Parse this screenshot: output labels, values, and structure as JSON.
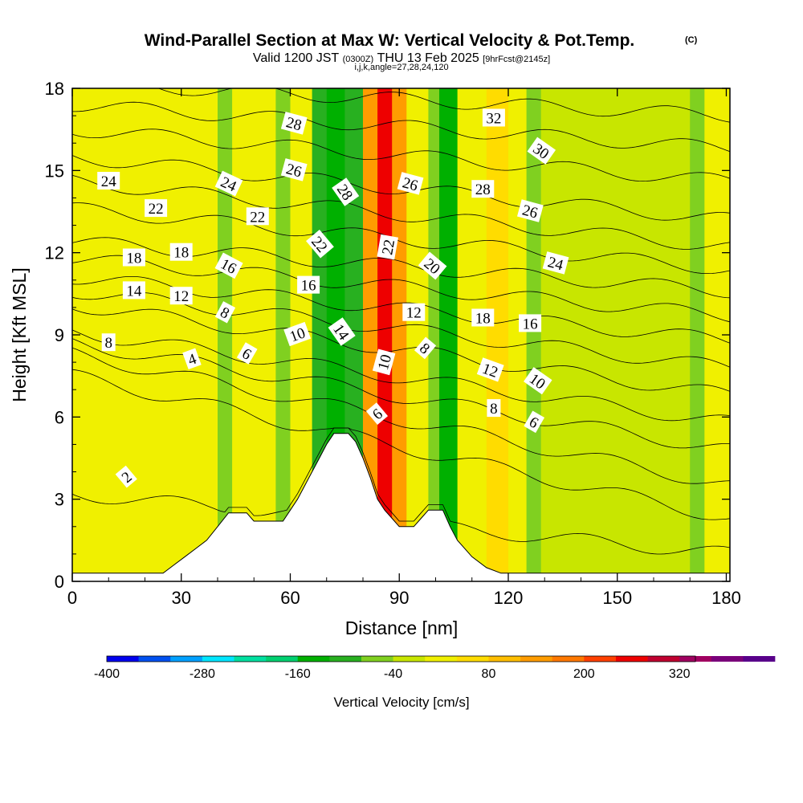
{
  "chart_data": {
    "type": "heatmap",
    "title": "Wind-Parallel Section at Max W: Vertical Velocity & Pot.Temp.",
    "title_mark": "(C)",
    "subtitle_main": "Valid 1200 JST",
    "subtitle_utc": "(0300Z)",
    "subtitle_date": "THU 13 Feb 2025",
    "subtitle_fcst": "[9hrFcst@2145z]",
    "subtitle_ijk": "i,j,k,angle=27,28,24,120",
    "xlabel": "Distance [nm]",
    "ylabel": "Height [Kft MSL]",
    "xlim": [
      0,
      181
    ],
    "ylim": [
      0,
      18
    ],
    "x_ticks": [
      0,
      30,
      60,
      90,
      120,
      150,
      180
    ],
    "x_tick_labels": [
      "0",
      "30",
      "60",
      "90",
      "120",
      "150",
      "180"
    ],
    "y_ticks": [
      0,
      3,
      6,
      9,
      12,
      15,
      18
    ],
    "y_tick_labels": [
      "0",
      "3",
      "6",
      "9",
      "12",
      "15",
      "18"
    ],
    "colorbar": {
      "title": "Vertical Velocity [cm/s]",
      "min": -400,
      "max": 340,
      "step": 40,
      "tick_labels": [
        "-400",
        "-280",
        "-160",
        "-40",
        "80",
        "200",
        "320"
      ],
      "tick_values": [
        -400,
        -280,
        -160,
        -40,
        80,
        200,
        320
      ],
      "colors": [
        "#0000ee",
        "#0050f0",
        "#00a0ff",
        "#00e6ff",
        "#00e0a0",
        "#00d070",
        "#00b000",
        "#28b020",
        "#80d020",
        "#c8e600",
        "#f0f000",
        "#ffdc00",
        "#ffbe00",
        "#ff9c00",
        "#ff7800",
        "#ff4000",
        "#ee0000",
        "#c00030",
        "#a00060",
        "#7a007a",
        "#58008a"
      ]
    },
    "vertical_velocity_columns": [
      {
        "x": [
          0,
          36
        ],
        "w": 10
      },
      {
        "x": [
          36,
          40
        ],
        "w": 0
      },
      {
        "x": [
          40,
          44
        ],
        "w": -60
      },
      {
        "x": [
          44,
          56
        ],
        "w": 10
      },
      {
        "x": [
          56,
          60
        ],
        "w": -50
      },
      {
        "x": [
          60,
          66
        ],
        "w": 30
      },
      {
        "x": [
          66,
          70
        ],
        "w": -90
      },
      {
        "x": [
          70,
          75
        ],
        "w": -150
      },
      {
        "x": [
          75,
          80
        ],
        "w": -100
      },
      {
        "x": [
          80,
          84
        ],
        "w": 130
      },
      {
        "x": [
          84,
          88
        ],
        "w": 240
      },
      {
        "x": [
          88,
          92
        ],
        "w": 120
      },
      {
        "x": [
          92,
          98
        ],
        "w": 10
      },
      {
        "x": [
          98,
          101
        ],
        "w": -60
      },
      {
        "x": [
          101,
          106
        ],
        "w": -150
      },
      {
        "x": [
          106,
          114
        ],
        "w": 10
      },
      {
        "x": [
          114,
          120
        ],
        "w": 50
      },
      {
        "x": [
          120,
          125
        ],
        "w": 20
      },
      {
        "x": [
          125,
          129
        ],
        "w": -60
      },
      {
        "x": [
          129,
          170
        ],
        "w": -20
      },
      {
        "x": [
          170,
          174
        ],
        "w": -80
      },
      {
        "x": [
          174,
          181
        ],
        "w": 20
      }
    ],
    "terrain": [
      [
        0,
        0.3
      ],
      [
        25,
        0.3
      ],
      [
        28,
        0.6
      ],
      [
        31,
        0.9
      ],
      [
        34,
        1.2
      ],
      [
        37,
        1.5
      ],
      [
        40,
        2.0
      ],
      [
        43,
        2.5
      ],
      [
        48,
        2.5
      ],
      [
        50,
        2.2
      ],
      [
        58,
        2.2
      ],
      [
        60,
        2.6
      ],
      [
        62,
        3.0
      ],
      [
        64,
        3.5
      ],
      [
        66,
        4.0
      ],
      [
        68,
        4.5
      ],
      [
        70,
        5.0
      ],
      [
        72,
        5.4
      ],
      [
        76,
        5.4
      ],
      [
        78,
        5.1
      ],
      [
        80,
        4.5
      ],
      [
        82,
        3.8
      ],
      [
        84,
        3.0
      ],
      [
        86,
        2.6
      ],
      [
        88,
        2.3
      ],
      [
        90,
        2.0
      ],
      [
        94,
        2.0
      ],
      [
        96,
        2.3
      ],
      [
        98,
        2.6
      ],
      [
        102,
        2.6
      ],
      [
        104,
        2.0
      ],
      [
        106,
        1.5
      ],
      [
        108,
        1.2
      ],
      [
        110,
        0.9
      ],
      [
        114,
        0.5
      ],
      [
        118,
        0.3
      ],
      [
        181,
        0.3
      ]
    ],
    "potential_temperature_contours": [
      {
        "label": "2",
        "left": 3.2,
        "right": 1.0
      },
      {
        "label": "4",
        "left": 7.5,
        "right": 2.3
      },
      {
        "label": "6",
        "left": 8.3,
        "right": 3.5
      },
      {
        "label": "8",
        "left": 8.7,
        "right": 4.8
      },
      {
        "label": "10",
        "left": 9.1,
        "right": 5.8
      },
      {
        "label": "12",
        "left": 10.1,
        "right": 6.8
      },
      {
        "label": "14",
        "left": 10.6,
        "right": 7.8
      },
      {
        "label": "16",
        "left": 11.1,
        "right": 8.8
      },
      {
        "label": "18",
        "left": 11.8,
        "right": 9.7
      },
      {
        "label": "20",
        "left": 12.4,
        "right": 10.6
      },
      {
        "label": "22",
        "left": 13.6,
        "right": 11.4
      },
      {
        "label": "24",
        "left": 14.6,
        "right": 12.2
      },
      {
        "label": "26",
        "left": 15.5,
        "right": 13.2
      },
      {
        "label": "28",
        "left": 16.5,
        "right": 14.6
      },
      {
        "label": "30",
        "left": 17.4,
        "right": 15.8
      },
      {
        "label": "32",
        "left": 18.2,
        "right": 17.0
      }
    ],
    "contour_labels": [
      {
        "text": "24",
        "x": 10,
        "y": 14.6,
        "rot": 0
      },
      {
        "text": "22",
        "x": 23,
        "y": 13.6,
        "rot": 0
      },
      {
        "text": "18",
        "x": 17,
        "y": 11.8,
        "rot": 0
      },
      {
        "text": "18",
        "x": 30,
        "y": 12.0,
        "rot": 0
      },
      {
        "text": "14",
        "x": 17,
        "y": 10.6,
        "rot": 0
      },
      {
        "text": "12",
        "x": 30,
        "y": 10.4,
        "rot": 0
      },
      {
        "text": "8",
        "x": 10,
        "y": 8.7,
        "rot": 0
      },
      {
        "text": "4",
        "x": 33,
        "y": 8.1,
        "rot": -20
      },
      {
        "text": "2",
        "x": 15,
        "y": 3.8,
        "rot": -40
      },
      {
        "text": "24",
        "x": 43,
        "y": 14.5,
        "rot": 25
      },
      {
        "text": "16",
        "x": 43,
        "y": 11.5,
        "rot": 28
      },
      {
        "text": "8",
        "x": 42,
        "y": 9.8,
        "rot": 28
      },
      {
        "text": "6",
        "x": 48,
        "y": 8.3,
        "rot": 30
      },
      {
        "text": "22",
        "x": 51,
        "y": 13.3,
        "rot": 0
      },
      {
        "text": "28",
        "x": 61,
        "y": 16.7,
        "rot": 15
      },
      {
        "text": "26",
        "x": 61,
        "y": 15.0,
        "rot": 15
      },
      {
        "text": "16",
        "x": 65,
        "y": 10.8,
        "rot": 0
      },
      {
        "text": "10",
        "x": 62,
        "y": 9.0,
        "rot": -20
      },
      {
        "text": "22",
        "x": 68,
        "y": 12.3,
        "rot": 50
      },
      {
        "text": "28",
        "x": 75,
        "y": 14.2,
        "rot": 55
      },
      {
        "text": "14",
        "x": 74,
        "y": 9.1,
        "rot": 55
      },
      {
        "text": "6",
        "x": 84,
        "y": 6.1,
        "rot": -40
      },
      {
        "text": "10",
        "x": 86,
        "y": 8.0,
        "rot": -75
      },
      {
        "text": "22",
        "x": 87,
        "y": 12.2,
        "rot": -80
      },
      {
        "text": "26",
        "x": 93,
        "y": 14.5,
        "rot": 15
      },
      {
        "text": "12",
        "x": 94,
        "y": 9.8,
        "rot": 0
      },
      {
        "text": "20",
        "x": 99,
        "y": 11.5,
        "rot": 40
      },
      {
        "text": "8",
        "x": 97,
        "y": 8.5,
        "rot": 40
      },
      {
        "text": "32",
        "x": 116,
        "y": 16.9,
        "rot": 0
      },
      {
        "text": "28",
        "x": 113,
        "y": 14.3,
        "rot": 0
      },
      {
        "text": "18",
        "x": 113,
        "y": 9.6,
        "rot": 0
      },
      {
        "text": "12",
        "x": 115,
        "y": 7.7,
        "rot": 20
      },
      {
        "text": "8",
        "x": 116,
        "y": 6.3,
        "rot": 0
      },
      {
        "text": "30",
        "x": 129,
        "y": 15.7,
        "rot": 35
      },
      {
        "text": "26",
        "x": 126,
        "y": 13.5,
        "rot": 15
      },
      {
        "text": "24",
        "x": 133,
        "y": 11.6,
        "rot": 15
      },
      {
        "text": "16",
        "x": 126,
        "y": 9.4,
        "rot": 0
      },
      {
        "text": "10",
        "x": 128,
        "y": 7.3,
        "rot": 35
      },
      {
        "text": "6",
        "x": 127,
        "y": 5.8,
        "rot": 30
      }
    ]
  }
}
